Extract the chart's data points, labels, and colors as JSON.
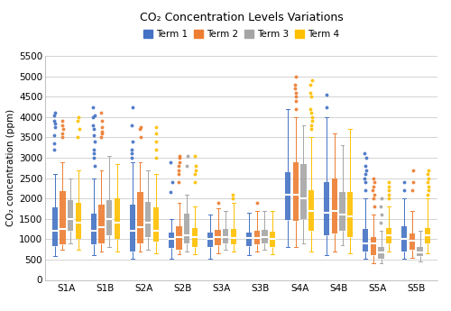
{
  "title": "CO₂ Concentration Levels Variations",
  "ylabel": "CO₂ concentration (ppm)",
  "ylim": [
    0,
    5500
  ],
  "yticks": [
    0,
    500,
    1000,
    1500,
    2000,
    2500,
    3000,
    3500,
    4000,
    4500,
    5000,
    5500
  ],
  "classrooms": [
    "S1A",
    "S1B",
    "S2A",
    "S2B",
    "S3A",
    "S3B",
    "S4A",
    "S4B",
    "S5A",
    "S5B"
  ],
  "terms": [
    "Term 1",
    "Term 2",
    "Term 3",
    "Term 4"
  ],
  "colors": [
    "#4472C4",
    "#ED7D31",
    "#A5A5A5",
    "#FFC000"
  ],
  "box_data": {
    "S1A": {
      "Term 1": {
        "whislo": 580,
        "q1": 820,
        "med": 1200,
        "q3": 1780,
        "whishi": 2600,
        "fliers_high": [
          3200,
          3350,
          3550,
          3750,
          3850,
          3900,
          4050,
          4100
        ],
        "fliers_low": []
      },
      "Term 2": {
        "whislo": 750,
        "q1": 870,
        "med": 1250,
        "q3": 2180,
        "whishi": 2900,
        "fliers_high": [
          3500,
          3600,
          3700,
          3800,
          3900
        ],
        "fliers_low": []
      },
      "Term 3": {
        "whislo": 900,
        "q1": 1200,
        "med": 1500,
        "q3": 1950,
        "whishi": 2500,
        "fliers_high": [],
        "fliers_low": []
      },
      "Term 4": {
        "whislo": 750,
        "q1": 1000,
        "med": 1400,
        "q3": 1900,
        "whishi": 2700,
        "fliers_high": [
          3500,
          3700,
          3900,
          4000
        ],
        "fliers_low": []
      }
    },
    "S1B": {
      "Term 1": {
        "whislo": 600,
        "q1": 870,
        "med": 1200,
        "q3": 1620,
        "whishi": 2500,
        "fliers_high": [
          2800,
          3000,
          3100,
          3200,
          3400,
          3550,
          3700,
          3800,
          4000,
          4050,
          4250
        ],
        "fliers_low": []
      },
      "Term 2": {
        "whislo": 700,
        "q1": 900,
        "med": 1300,
        "q3": 1850,
        "whishi": 2700,
        "fliers_high": [
          3500,
          3600,
          3650,
          3750,
          3900,
          4100
        ],
        "fliers_low": []
      },
      "Term 3": {
        "whislo": 800,
        "q1": 1100,
        "med": 1500,
        "q3": 1950,
        "whishi": 3050,
        "fliers_high": [],
        "fliers_low": []
      },
      "Term 4": {
        "whislo": 700,
        "q1": 1000,
        "med": 1400,
        "q3": 2000,
        "whishi": 2850,
        "fliers_high": [],
        "fliers_low": []
      }
    },
    "S2A": {
      "Term 1": {
        "whislo": 530,
        "q1": 700,
        "med": 1200,
        "q3": 1840,
        "whishi": 2900,
        "fliers_high": [
          3000,
          3100,
          3200,
          3400,
          3800,
          4250
        ],
        "fliers_low": []
      },
      "Term 2": {
        "whislo": 700,
        "q1": 900,
        "med": 1300,
        "q3": 2160,
        "whishi": 2900,
        "fliers_high": [
          3500,
          3700,
          3750
        ],
        "fliers_low": []
      },
      "Term 3": {
        "whislo": 750,
        "q1": 1050,
        "med": 1400,
        "q3": 1920,
        "whishi": 2700,
        "fliers_high": [],
        "fliers_low": []
      },
      "Term 4": {
        "whislo": 650,
        "q1": 950,
        "med": 1200,
        "q3": 1790,
        "whishi": 2600,
        "fliers_high": [
          3000,
          3200,
          3400,
          3600,
          3750
        ],
        "fliers_low": []
      }
    },
    "S2B": {
      "Term 1": {
        "whislo": 530,
        "q1": 780,
        "med": 1000,
        "q3": 1160,
        "whishi": 1500,
        "fliers_high": [
          2150,
          2400,
          2900
        ],
        "fliers_low": []
      },
      "Term 2": {
        "whislo": 620,
        "q1": 750,
        "med": 1050,
        "q3": 1320,
        "whishi": 1900,
        "fliers_high": [
          2400,
          2600,
          2700,
          2800,
          2900,
          3000,
          3050
        ],
        "fliers_low": []
      },
      "Term 3": {
        "whislo": 700,
        "q1": 900,
        "med": 1100,
        "q3": 1620,
        "whishi": 2100,
        "fliers_high": [
          2800,
          3050
        ],
        "fliers_low": []
      },
      "Term 4": {
        "whislo": 620,
        "q1": 800,
        "med": 1050,
        "q3": 1280,
        "whishi": 1800,
        "fliers_high": [
          2400,
          2600,
          2700,
          2800,
          3050
        ],
        "fliers_low": []
      }
    },
    "S3A": {
      "Term 1": {
        "whislo": 530,
        "q1": 800,
        "med": 1000,
        "q3": 1170,
        "whishi": 1600,
        "fliers_high": [],
        "fliers_low": []
      },
      "Term 2": {
        "whislo": 650,
        "q1": 850,
        "med": 1050,
        "q3": 1220,
        "whishi": 1750,
        "fliers_high": [
          1900
        ],
        "fliers_low": []
      },
      "Term 3": {
        "whislo": 750,
        "q1": 900,
        "med": 1050,
        "q3": 1250,
        "whishi": 1700,
        "fliers_high": [],
        "fliers_low": []
      },
      "Term 4": {
        "whislo": 700,
        "q1": 870,
        "med": 1020,
        "q3": 1260,
        "whishi": 1900,
        "fliers_high": [
          2000,
          2100
        ],
        "fliers_low": []
      }
    },
    "S3B": {
      "Term 1": {
        "whislo": 600,
        "q1": 840,
        "med": 1020,
        "q3": 1170,
        "whishi": 1650,
        "fliers_high": [],
        "fliers_low": []
      },
      "Term 2": {
        "whislo": 700,
        "q1": 870,
        "med": 1030,
        "q3": 1200,
        "whishi": 1700,
        "fliers_high": [
          1900
        ],
        "fliers_low": []
      },
      "Term 3": {
        "whislo": 750,
        "q1": 900,
        "med": 1050,
        "q3": 1220,
        "whishi": 1700,
        "fliers_high": [],
        "fliers_low": []
      },
      "Term 4": {
        "whislo": 620,
        "q1": 800,
        "med": 1000,
        "q3": 1180,
        "whishi": 1700,
        "fliers_high": [],
        "fliers_low": []
      }
    },
    "S4A": {
      "Term 1": {
        "whislo": 800,
        "q1": 1480,
        "med": 2100,
        "q3": 2650,
        "whishi": 4200,
        "fliers_high": [],
        "fliers_low": []
      },
      "Term 2": {
        "whislo": 800,
        "q1": 1450,
        "med": 2100,
        "q3": 2900,
        "whishi": 4000,
        "fliers_high": [
          4200,
          4400,
          4500,
          4600,
          4700,
          4800,
          5000
        ],
        "fliers_low": []
      },
      "Term 3": {
        "whislo": 900,
        "q1": 1500,
        "med": 2000,
        "q3": 2850,
        "whishi": 3800,
        "fliers_high": [],
        "fliers_low": []
      },
      "Term 4": {
        "whislo": 700,
        "q1": 1200,
        "med": 1700,
        "q3": 2200,
        "whishi": 3500,
        "fliers_high": [
          3700,
          3800,
          3900,
          4000,
          4100,
          4200,
          4500,
          4600,
          4800,
          4900
        ],
        "fliers_low": []
      }
    },
    "S4B": {
      "Term 1": {
        "whislo": 600,
        "q1": 1100,
        "med": 1650,
        "q3": 2400,
        "whishi": 4000,
        "fliers_high": [
          4250,
          4550
        ],
        "fliers_low": []
      },
      "Term 2": {
        "whislo": 700,
        "q1": 1150,
        "med": 1700,
        "q3": 2500,
        "whishi": 3600,
        "fliers_high": [],
        "fliers_low": []
      },
      "Term 3": {
        "whislo": 850,
        "q1": 1200,
        "med": 1600,
        "q3": 2150,
        "whishi": 3300,
        "fliers_high": [],
        "fliers_low": []
      },
      "Term 4": {
        "whislo": 650,
        "q1": 1050,
        "med": 1550,
        "q3": 2150,
        "whishi": 3700,
        "fliers_high": [],
        "fliers_low": []
      }
    },
    "S5A": {
      "Term 1": {
        "whislo": 530,
        "q1": 700,
        "med": 900,
        "q3": 1250,
        "whishi": 2000,
        "fliers_high": [
          2200,
          2400,
          2500,
          2600,
          2700,
          2800,
          3000,
          3100
        ],
        "fliers_low": []
      },
      "Term 2": {
        "whislo": 400,
        "q1": 600,
        "med": 900,
        "q3": 1050,
        "whishi": 1600,
        "fliers_high": [
          1800,
          2000,
          2100,
          2200,
          2300,
          2400,
          2500
        ],
        "fliers_low": []
      },
      "Term 3": {
        "whislo": 400,
        "q1": 520,
        "med": 680,
        "q3": 800,
        "whishi": 1200,
        "fliers_high": [
          1400,
          1600,
          1800,
          2000
        ],
        "fliers_low": []
      },
      "Term 4": {
        "whislo": 700,
        "q1": 900,
        "med": 1100,
        "q3": 1280,
        "whishi": 1800,
        "fliers_high": [
          2000,
          2100,
          2200,
          2300,
          2400
        ],
        "fliers_low": []
      }
    },
    "S5B": {
      "Term 1": {
        "whislo": 530,
        "q1": 700,
        "med": 1000,
        "q3": 1310,
        "whishi": 2000,
        "fliers_high": [
          2200,
          2400
        ],
        "fliers_low": []
      },
      "Term 2": {
        "whislo": 550,
        "q1": 750,
        "med": 960,
        "q3": 1150,
        "whishi": 1700,
        "fliers_high": [
          2200,
          2400,
          2700
        ],
        "fliers_low": []
      },
      "Term 3": {
        "whislo": 450,
        "q1": 580,
        "med": 680,
        "q3": 800,
        "whishi": 1200,
        "fliers_high": [],
        "fliers_low": []
      },
      "Term 4": {
        "whislo": 650,
        "q1": 900,
        "med": 1100,
        "q3": 1280,
        "whishi": 2000,
        "fliers_high": [
          2100,
          2200,
          2300,
          2400,
          2500,
          2600,
          2700
        ],
        "fliers_low": []
      }
    }
  }
}
